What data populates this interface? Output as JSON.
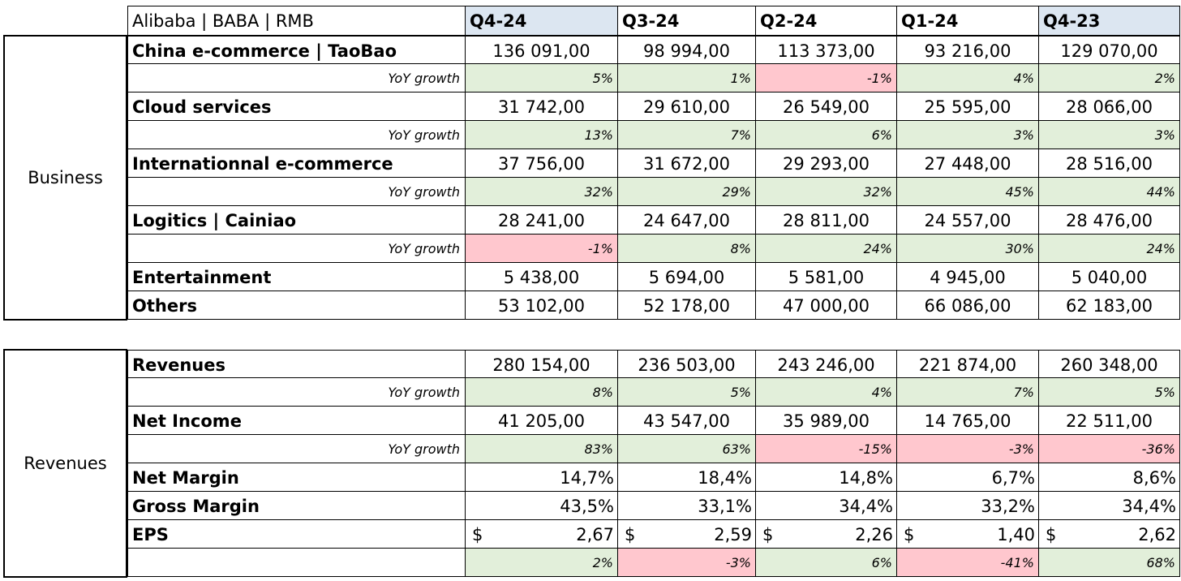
{
  "sheet": {
    "title": "Alibaba | BABA | RMB",
    "quarters": [
      "Q4-24",
      "Q3-24",
      "Q2-24",
      "Q1-24",
      "Q4-23"
    ],
    "highlighted_quarters": [
      0,
      4
    ],
    "colors": {
      "positive": "#e2efda",
      "negative": "#ffc7ce",
      "header_highlight": "#dce6f1"
    }
  },
  "business": {
    "section_label": "Business",
    "rows": [
      {
        "kind": "value",
        "label": "China e-commerce | TaoBao",
        "values": [
          "136 091,00",
          "98 994,00",
          "113 373,00",
          "93 216,00",
          "129 070,00"
        ]
      },
      {
        "kind": "growth",
        "label": "YoY growth",
        "values": [
          "5%",
          "1%",
          "-1%",
          "4%",
          "2%"
        ]
      },
      {
        "kind": "value",
        "label": "Cloud services",
        "values": [
          "31 742,00",
          "29 610,00",
          "26 549,00",
          "25 595,00",
          "28 066,00"
        ]
      },
      {
        "kind": "growth",
        "label": "YoY growth",
        "values": [
          "13%",
          "7%",
          "6%",
          "3%",
          "3%"
        ]
      },
      {
        "kind": "value",
        "label": "Internationnal e-commerce",
        "values": [
          "37 756,00",
          "31 672,00",
          "29 293,00",
          "27 448,00",
          "28 516,00"
        ]
      },
      {
        "kind": "growth",
        "label": "YoY growth",
        "values": [
          "32%",
          "29%",
          "32%",
          "45%",
          "44%"
        ]
      },
      {
        "kind": "value",
        "label": "Logitics | Cainiao",
        "values": [
          "28 241,00",
          "24 647,00",
          "28 811,00",
          "24 557,00",
          "28 476,00"
        ]
      },
      {
        "kind": "growth",
        "label": "YoY growth",
        "values": [
          "-1%",
          "8%",
          "24%",
          "30%",
          "24%"
        ]
      },
      {
        "kind": "value",
        "label": "Entertainment",
        "values": [
          "5 438,00",
          "5 694,00",
          "5 581,00",
          "4 945,00",
          "5 040,00"
        ]
      },
      {
        "kind": "value",
        "label": "Others",
        "values": [
          "53 102,00",
          "52 178,00",
          "47 000,00",
          "66 086,00",
          "62 183,00"
        ]
      }
    ]
  },
  "revenues": {
    "section_label": "Revenues",
    "rows": [
      {
        "kind": "value",
        "label": "Revenues",
        "values": [
          "280 154,00",
          "236 503,00",
          "243 246,00",
          "221 874,00",
          "260 348,00"
        ]
      },
      {
        "kind": "growth",
        "label": "YoY growth",
        "values": [
          "8%",
          "5%",
          "4%",
          "7%",
          "5%"
        ]
      },
      {
        "kind": "value",
        "label": "Net Income",
        "values": [
          "41 205,00",
          "43 547,00",
          "35 989,00",
          "14 765,00",
          "22 511,00"
        ]
      },
      {
        "kind": "growth",
        "label": "YoY growth",
        "values": [
          "83%",
          "63%",
          "-15%",
          "-3%",
          "-36%"
        ]
      },
      {
        "kind": "pct",
        "label": "Net Margin",
        "values": [
          "14,7%",
          "18,4%",
          "14,8%",
          "6,7%",
          "8,6%"
        ]
      },
      {
        "kind": "pct",
        "label": "Gross Margin",
        "values": [
          "43,5%",
          "33,1%",
          "34,4%",
          "33,2%",
          "34,4%"
        ]
      },
      {
        "kind": "eps",
        "label": "EPS",
        "currency": "$",
        "values": [
          "2,67",
          "2,59",
          "2,26",
          "1,40",
          "2,62"
        ]
      },
      {
        "kind": "growth",
        "label": "",
        "values": [
          "2%",
          "-3%",
          "6%",
          "-41%",
          "68%"
        ]
      }
    ]
  }
}
